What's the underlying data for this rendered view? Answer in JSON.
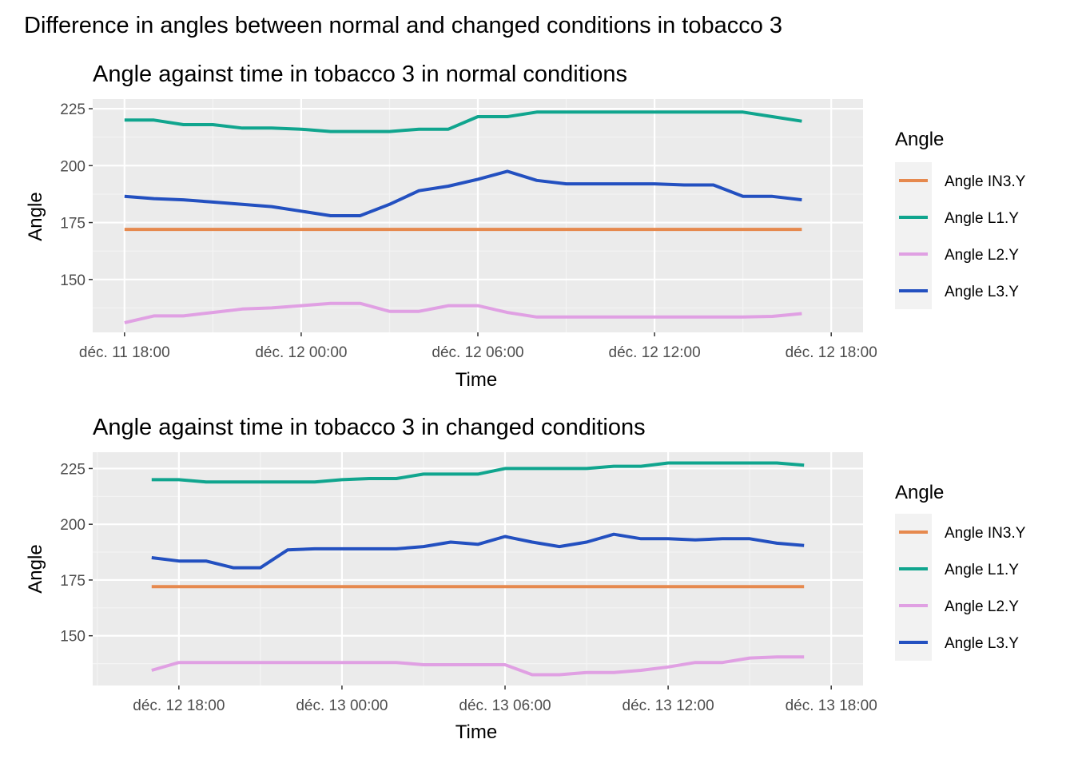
{
  "figure_title": "Difference in angles between normal and changed conditions in tobacco  3",
  "colors": {
    "panel_background": "#EBEBEB",
    "grid_major": "#FFFFFF",
    "grid_minor": "#F4F4F4",
    "tick_text": "#4D4D4D",
    "legend_key_background": "#F2F2F2"
  },
  "chart_data": [
    {
      "type": "line",
      "title": "Angle against time in tobacco  3 in normal conditions",
      "xlabel": "Time",
      "ylabel": "Angle",
      "x_axis_type": "datetime",
      "xlim": [
        "2023-12-11T18:00",
        "2023-12-12T18:00"
      ],
      "x_ticks": [
        "2023-12-11T18:00",
        "2023-12-12T00:00",
        "2023-12-12T06:00",
        "2023-12-12T12:00",
        "2023-12-12T18:00"
      ],
      "x_tick_labels": [
        "déc. 11 18:00",
        "déc. 12 00:00",
        "déc. 12 06:00",
        "déc. 12 12:00",
        "déc. 12 18:00"
      ],
      "ylim": [
        131,
        225
      ],
      "y_ticks": [
        150,
        175,
        200,
        225
      ],
      "y_tick_labels": [
        "150",
        "175",
        "200",
        "225"
      ],
      "grid": true,
      "legend": {
        "title": "Angle",
        "position": "right"
      },
      "series": [
        {
          "name": "Angle IN3.Y",
          "color": "#E6894E",
          "x": [
            "2023-12-11T18:00",
            "2023-12-12T17:00"
          ],
          "y": [
            172,
            172
          ]
        },
        {
          "name": "Angle L1.Y",
          "color": "#10A58E",
          "x": [
            "2023-12-11T18:00",
            "2023-12-11T19:00",
            "2023-12-11T20:00",
            "2023-12-11T21:00",
            "2023-12-11T22:00",
            "2023-12-11T23:00",
            "2023-12-12T00:00",
            "2023-12-12T01:00",
            "2023-12-12T02:00",
            "2023-12-12T03:00",
            "2023-12-12T04:00",
            "2023-12-12T05:00",
            "2023-12-12T06:00",
            "2023-12-12T07:00",
            "2023-12-12T08:00",
            "2023-12-12T09:00",
            "2023-12-12T10:00",
            "2023-12-12T11:00",
            "2023-12-12T12:00",
            "2023-12-12T13:00",
            "2023-12-12T14:00",
            "2023-12-12T15:00",
            "2023-12-12T16:00",
            "2023-12-12T17:00"
          ],
          "y": [
            220,
            220,
            218,
            218,
            216.5,
            216.5,
            216,
            215,
            215,
            215,
            216,
            216,
            221.5,
            221.5,
            223.5,
            223.5,
            223.5,
            223.5,
            223.5,
            223.5,
            223.5,
            223.5,
            221.5,
            219.5
          ]
        },
        {
          "name": "Angle L2.Y",
          "color": "#E0A0E3",
          "x": [
            "2023-12-11T18:00",
            "2023-12-11T19:00",
            "2023-12-11T20:00",
            "2023-12-11T21:00",
            "2023-12-11T22:00",
            "2023-12-11T23:00",
            "2023-12-12T00:00",
            "2023-12-12T01:00",
            "2023-12-12T02:00",
            "2023-12-12T03:00",
            "2023-12-12T04:00",
            "2023-12-12T05:00",
            "2023-12-12T06:00",
            "2023-12-12T07:00",
            "2023-12-12T08:00",
            "2023-12-12T09:00",
            "2023-12-12T10:00",
            "2023-12-12T11:00",
            "2023-12-12T12:00",
            "2023-12-12T13:00",
            "2023-12-12T14:00",
            "2023-12-12T15:00",
            "2023-12-12T16:00",
            "2023-12-12T17:00"
          ],
          "y": [
            131,
            134,
            134,
            135.5,
            137,
            137.5,
            138.5,
            139.5,
            139.5,
            136,
            136,
            138.5,
            138.5,
            135.5,
            133.5,
            133.5,
            133.5,
            133.5,
            133.5,
            133.5,
            133.5,
            133.5,
            133.8,
            135
          ]
        },
        {
          "name": "Angle L3.Y",
          "color": "#2350C0",
          "x": [
            "2023-12-11T18:00",
            "2023-12-11T19:00",
            "2023-12-11T20:00",
            "2023-12-11T21:00",
            "2023-12-11T22:00",
            "2023-12-11T23:00",
            "2023-12-12T00:00",
            "2023-12-12T01:00",
            "2023-12-12T02:00",
            "2023-12-12T03:00",
            "2023-12-12T04:00",
            "2023-12-12T05:00",
            "2023-12-12T06:00",
            "2023-12-12T07:00",
            "2023-12-12T08:00",
            "2023-12-12T09:00",
            "2023-12-12T10:00",
            "2023-12-12T11:00",
            "2023-12-12T12:00",
            "2023-12-12T13:00",
            "2023-12-12T14:00",
            "2023-12-12T15:00",
            "2023-12-12T16:00",
            "2023-12-12T17:00"
          ],
          "y": [
            186.5,
            185.5,
            185,
            184,
            183,
            182,
            180,
            178,
            178,
            183,
            189,
            191,
            194,
            197.5,
            193.5,
            192,
            192,
            192,
            192,
            191.5,
            191.5,
            186.5,
            186.5,
            185
          ]
        }
      ]
    },
    {
      "type": "line",
      "title": "Angle against time in tobacco  3 in changed conditions",
      "xlabel": "Time",
      "ylabel": "Angle",
      "x_axis_type": "datetime",
      "xlim": [
        "2023-12-12T16:00",
        "2023-12-13T18:00"
      ],
      "x_ticks": [
        "2023-12-12T18:00",
        "2023-12-13T00:00",
        "2023-12-13T06:00",
        "2023-12-13T12:00",
        "2023-12-13T18:00"
      ],
      "x_tick_labels": [
        "déc. 12 18:00",
        "déc. 13 00:00",
        "déc. 13 06:00",
        "déc. 13 12:00",
        "déc. 13 18:00"
      ],
      "ylim": [
        132,
        228
      ],
      "y_ticks": [
        150,
        175,
        200,
        225
      ],
      "y_tick_labels": [
        "150",
        "175",
        "200",
        "225"
      ],
      "grid": true,
      "legend": {
        "title": "Angle",
        "position": "right"
      },
      "series": [
        {
          "name": "Angle IN3.Y",
          "color": "#E6894E",
          "x": [
            "2023-12-12T17:00",
            "2023-12-13T17:00"
          ],
          "y": [
            172,
            172
          ]
        },
        {
          "name": "Angle L1.Y",
          "color": "#10A58E",
          "x": [
            "2023-12-12T17:00",
            "2023-12-12T18:00",
            "2023-12-12T19:00",
            "2023-12-12T20:00",
            "2023-12-12T21:00",
            "2023-12-12T22:00",
            "2023-12-12T23:00",
            "2023-12-13T00:00",
            "2023-12-13T01:00",
            "2023-12-13T02:00",
            "2023-12-13T03:00",
            "2023-12-13T04:00",
            "2023-12-13T05:00",
            "2023-12-13T06:00",
            "2023-12-13T07:00",
            "2023-12-13T08:00",
            "2023-12-13T09:00",
            "2023-12-13T10:00",
            "2023-12-13T11:00",
            "2023-12-13T12:00",
            "2023-12-13T13:00",
            "2023-12-13T14:00",
            "2023-12-13T15:00",
            "2023-12-13T16:00",
            "2023-12-13T17:00"
          ],
          "y": [
            220,
            220,
            219,
            219,
            219,
            219,
            219,
            220,
            220.5,
            220.5,
            222.5,
            222.5,
            222.5,
            225,
            225,
            225,
            225,
            226,
            226,
            227.5,
            227.5,
            227.5,
            227.5,
            227.5,
            226.5
          ]
        },
        {
          "name": "Angle L2.Y",
          "color": "#E0A0E3",
          "x": [
            "2023-12-12T17:00",
            "2023-12-12T18:00",
            "2023-12-12T19:00",
            "2023-12-12T20:00",
            "2023-12-12T21:00",
            "2023-12-12T22:00",
            "2023-12-12T23:00",
            "2023-12-13T00:00",
            "2023-12-13T01:00",
            "2023-12-13T02:00",
            "2023-12-13T03:00",
            "2023-12-13T04:00",
            "2023-12-13T05:00",
            "2023-12-13T06:00",
            "2023-12-13T07:00",
            "2023-12-13T08:00",
            "2023-12-13T09:00",
            "2023-12-13T10:00",
            "2023-12-13T11:00",
            "2023-12-13T12:00",
            "2023-12-13T13:00",
            "2023-12-13T14:00",
            "2023-12-13T15:00",
            "2023-12-13T16:00",
            "2023-12-13T17:00"
          ],
          "y": [
            134.5,
            138,
            138,
            138,
            138,
            138,
            138,
            138,
            138,
            138,
            137,
            137,
            137,
            137,
            132.5,
            132.5,
            133.5,
            133.5,
            134.5,
            136,
            138,
            138,
            140,
            140.5,
            140.5
          ]
        },
        {
          "name": "Angle L3.Y",
          "color": "#2350C0",
          "x": [
            "2023-12-12T17:00",
            "2023-12-12T18:00",
            "2023-12-12T19:00",
            "2023-12-12T20:00",
            "2023-12-12T21:00",
            "2023-12-12T22:00",
            "2023-12-12T23:00",
            "2023-12-13T00:00",
            "2023-12-13T01:00",
            "2023-12-13T02:00",
            "2023-12-13T03:00",
            "2023-12-13T04:00",
            "2023-12-13T05:00",
            "2023-12-13T06:00",
            "2023-12-13T07:00",
            "2023-12-13T08:00",
            "2023-12-13T09:00",
            "2023-12-13T10:00",
            "2023-12-13T11:00",
            "2023-12-13T12:00",
            "2023-12-13T13:00",
            "2023-12-13T14:00",
            "2023-12-13T15:00",
            "2023-12-13T16:00",
            "2023-12-13T17:00"
          ],
          "y": [
            185,
            183.5,
            183.5,
            180.5,
            180.5,
            188.5,
            189,
            189,
            189,
            189,
            190,
            192,
            191,
            194.5,
            192,
            190,
            192,
            195.5,
            193.5,
            193.5,
            193,
            193.5,
            193.5,
            191.5,
            190.5
          ]
        }
      ]
    }
  ]
}
